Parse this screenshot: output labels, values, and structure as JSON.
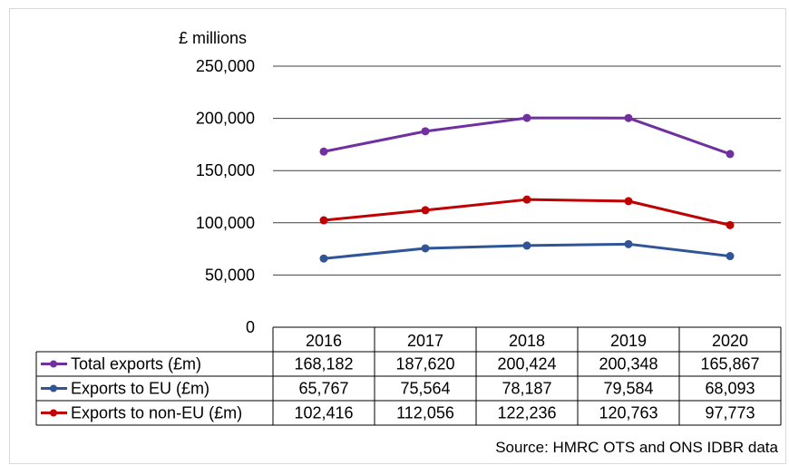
{
  "chart_data": {
    "type": "line",
    "y_unit_label": "£ millions",
    "categories": [
      "2016",
      "2017",
      "2018",
      "2019",
      "2020"
    ],
    "ylim": [
      0,
      250000
    ],
    "yticks": [
      0,
      50000,
      100000,
      150000,
      200000,
      250000
    ],
    "ytick_labels": [
      "0",
      "50,000",
      "100,000",
      "150,000",
      "200,000",
      "250,000"
    ],
    "grid": true,
    "legend": "data-table",
    "series": [
      {
        "name": "Total exports (£m)",
        "color": "#7030a0",
        "values": [
          168182,
          187620,
          200424,
          200348,
          165867
        ],
        "labels": [
          "168,182",
          "187,620",
          "200,424",
          "200,348",
          "165,867"
        ]
      },
      {
        "name": "Exports to EU (£m)",
        "color": "#2f5597",
        "values": [
          65767,
          75564,
          78187,
          79584,
          68093
        ],
        "labels": [
          "65,767",
          "75,564",
          "78,187",
          "79,584",
          "68,093"
        ]
      },
      {
        "name": "Exports to non-EU (£m)",
        "color": "#c00000",
        "values": [
          102416,
          112056,
          122236,
          120763,
          97773
        ],
        "labels": [
          "102,416",
          "112,056",
          "122,236",
          "120,763",
          "97,773"
        ]
      }
    ],
    "source": "Source: HMRC OTS and ONS IDBR data"
  }
}
